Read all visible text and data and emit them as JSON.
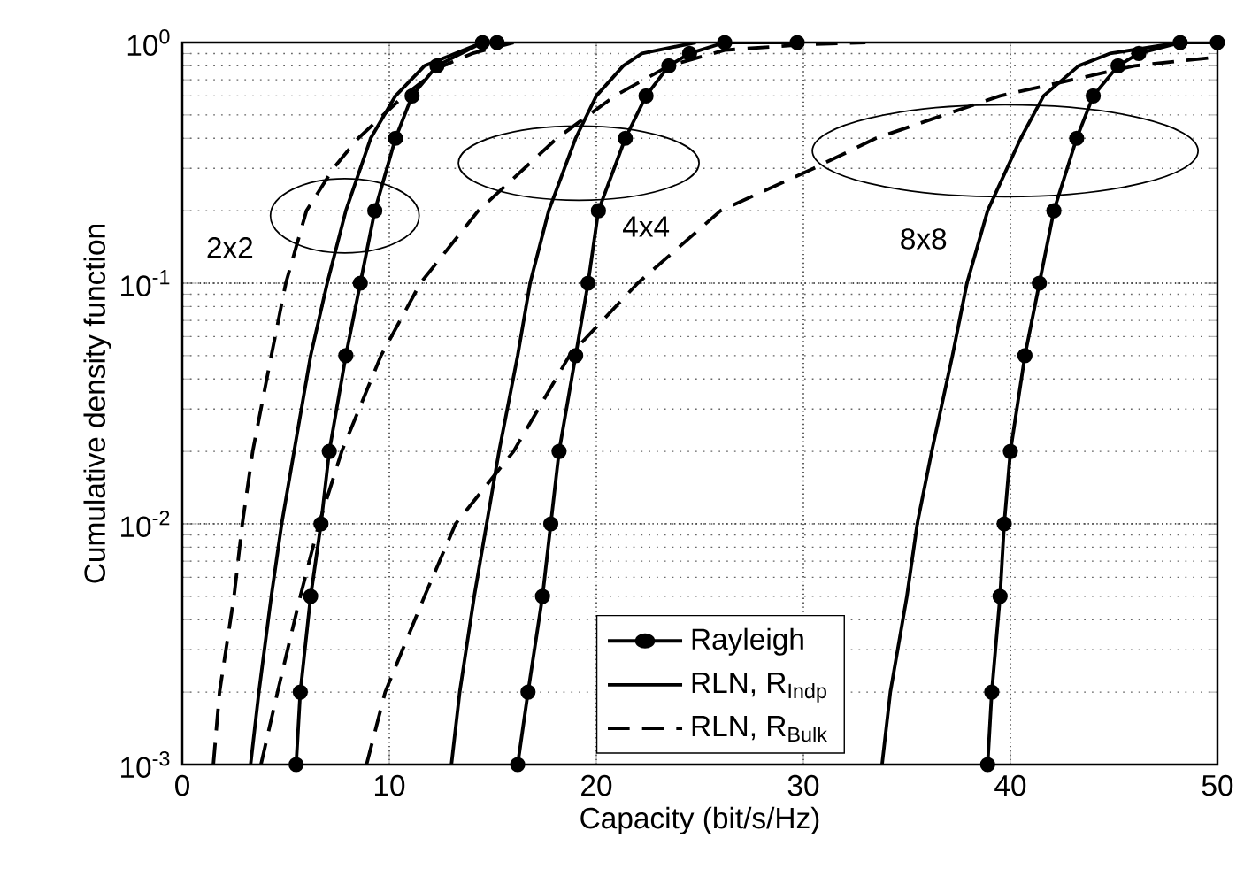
{
  "chart_data": {
    "type": "line",
    "xlabel": "Capacity (bit/s/Hz)",
    "ylabel": "Cumulative density function",
    "xlim": [
      0,
      50
    ],
    "xticks": [
      0,
      10,
      20,
      30,
      40,
      50
    ],
    "ylim": [
      0.001,
      1
    ],
    "yticks": [
      {
        "value": 0.001,
        "label": "10$^{-3}$"
      },
      {
        "value": 0.01,
        "label": "10$^{-2}$"
      },
      {
        "value": 0.1,
        "label": "10$^{-1}$"
      },
      {
        "value": 1,
        "label": "10$^{0}$"
      }
    ],
    "log": "y",
    "grid": true,
    "legend": "bottom",
    "series": [
      {
        "name": "Rayleigh",
        "color": "#000000",
        "marker": "circle",
        "line_style": "solid",
        "x": [
          5.5,
          5.7,
          6.2,
          6.7,
          7.1,
          7.9,
          8.6,
          9.3,
          10.3,
          11.1,
          12.3,
          14.5,
          15.2
        ],
        "values": [
          0.001,
          0.002,
          0.005,
          0.01,
          0.02,
          0.05,
          0.1,
          0.2,
          0.4,
          0.6,
          0.8,
          1,
          1
        ]
      },
      {
        "name": "RLN, R$_{Indp}$",
        "color": "#000000",
        "marker": "none",
        "line_style": "solid",
        "x": [
          3.3,
          3.7,
          4.3,
          4.8,
          5.4,
          6.2,
          7.0,
          7.9,
          9.1,
          10.3,
          11.7,
          14.5
        ],
        "values": [
          0.001,
          0.002,
          0.005,
          0.01,
          0.02,
          0.05,
          0.1,
          0.2,
          0.4,
          0.6,
          0.8,
          1
        ]
      },
      {
        "name": "RLN, R$_{Bulk}$",
        "color": "#000000",
        "marker": "none",
        "line_style": "dashed",
        "x": [
          1.5,
          1.8,
          2.5,
          2.9,
          3.4,
          4.3,
          5.0,
          6.0,
          7.3,
          8.5,
          10.7,
          12.6,
          14.0,
          16.0
        ],
        "values": [
          0.001,
          0.002,
          0.005,
          0.01,
          0.02,
          0.05,
          0.1,
          0.2,
          0.3,
          0.4,
          0.6,
          0.8,
          0.9,
          1
        ]
      },
      {
        "color": "#000000",
        "marker": "circle",
        "line_style": "solid",
        "x": [
          16.2,
          16.7,
          17.4,
          17.8,
          18.2,
          19.0,
          19.6,
          20.1,
          21.4,
          22.4,
          23.5,
          24.5,
          26.2,
          29.7
        ],
        "values": [
          0.001,
          0.002,
          0.005,
          0.01,
          0.02,
          0.05,
          0.1,
          0.2,
          0.4,
          0.6,
          0.8,
          0.9,
          1,
          1
        ]
      },
      {
        "color": "#000000",
        "marker": "none",
        "line_style": "solid",
        "x": [
          13.0,
          13.4,
          14.1,
          14.7,
          15.3,
          16.2,
          16.8,
          17.7,
          19.0,
          20.0,
          21.3,
          22.2,
          24.8
        ],
        "values": [
          0.001,
          0.002,
          0.005,
          0.01,
          0.02,
          0.05,
          0.1,
          0.2,
          0.4,
          0.6,
          0.8,
          0.9,
          1
        ]
      },
      {
        "color": "#000000",
        "marker": "none",
        "line_style": "dashed",
        "x": [
          3.8,
          4.6,
          5.7,
          6.6,
          7.7,
          9.6,
          11.5,
          14.3,
          18.1,
          20.9,
          23.5,
          26.2,
          30.0,
          33.0
        ],
        "values": [
          0.001,
          0.002,
          0.005,
          0.01,
          0.02,
          0.05,
          0.1,
          0.2,
          0.4,
          0.6,
          0.8,
          0.93,
          0.98,
          1
        ]
      },
      {
        "color": "#000000",
        "marker": "circle",
        "line_style": "solid",
        "x": [
          38.9,
          39.1,
          39.5,
          39.7,
          40.0,
          40.7,
          41.4,
          42.1,
          43.2,
          44.0,
          45.2,
          46.2,
          48.2,
          50.0
        ],
        "values": [
          0.001,
          0.002,
          0.005,
          0.01,
          0.02,
          0.05,
          0.1,
          0.2,
          0.4,
          0.6,
          0.8,
          0.9,
          1,
          1
        ]
      },
      {
        "color": "#000000",
        "marker": "none",
        "line_style": "solid",
        "x": [
          33.8,
          34.2,
          35.0,
          35.5,
          36.2,
          37.2,
          37.9,
          38.9,
          40.5,
          41.6,
          43.3,
          44.8,
          48.2
        ],
        "values": [
          0.001,
          0.002,
          0.005,
          0.01,
          0.02,
          0.05,
          0.1,
          0.2,
          0.4,
          0.6,
          0.8,
          0.9,
          1
        ]
      },
      {
        "color": "#000000",
        "marker": "none",
        "line_style": "dashed",
        "x": [
          8.9,
          9.8,
          11.7,
          13.2,
          16.0,
          18.7,
          22.0,
          26.0,
          30.5,
          33.5,
          39.5,
          46.0,
          50.0
        ],
        "values": [
          0.001,
          0.002,
          0.005,
          0.01,
          0.02,
          0.05,
          0.1,
          0.2,
          0.3,
          0.4,
          0.6,
          0.8,
          0.87
        ]
      }
    ],
    "annotations": [
      "2x2",
      "4x4",
      "8x8"
    ]
  }
}
